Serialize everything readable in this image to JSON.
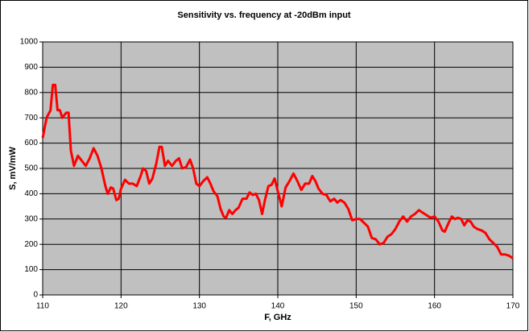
{
  "chart_data": {
    "type": "line",
    "title": "Sensitivity vs. frequency at -20dBm input",
    "xlabel": "F, GHz",
    "ylabel": "S, mV/mW",
    "x": [
      110,
      110.5,
      111,
      111.3,
      111.6,
      111.9,
      112.2,
      112.5,
      113,
      113.3,
      113.6,
      114,
      114.5,
      115,
      115.5,
      116,
      116.5,
      117,
      117.5,
      118,
      118.3,
      118.7,
      119,
      119.4,
      119.7,
      120,
      120.5,
      121,
      121.5,
      122,
      122.5,
      122.8,
      123.2,
      123.6,
      124,
      124.5,
      124.9,
      125.2,
      125.6,
      126,
      126.5,
      127,
      127.4,
      127.8,
      128.3,
      128.8,
      129.2,
      129.6,
      130,
      130.5,
      131,
      131.4,
      131.8,
      132.3,
      132.7,
      133.1,
      133.4,
      133.8,
      134.2,
      134.6,
      135,
      135.5,
      136,
      136.4,
      136.8,
      137.2,
      137.6,
      138,
      138.4,
      138.8,
      139.2,
      139.6,
      140,
      140.5,
      141,
      141.5,
      142,
      142.5,
      143,
      143.5,
      144,
      144.4,
      144.8,
      145.2,
      145.7,
      146.2,
      146.7,
      147.2,
      147.6,
      148,
      148.5,
      149,
      149.5,
      150,
      150.5,
      151,
      151.5,
      152,
      152.5,
      153,
      153.5,
      154,
      154.5,
      155,
      155.5,
      156,
      156.5,
      157,
      157.5,
      158,
      158.5,
      159,
      159.5,
      160,
      160.5,
      161,
      161.3,
      161.8,
      162.2,
      162.6,
      163,
      163.4,
      163.8,
      164.2,
      164.6,
      165,
      165.5,
      166,
      166.5,
      167,
      167.5,
      168,
      168.5,
      169,
      169.5,
      170
    ],
    "series": [
      {
        "color": "#ff0000",
        "values": [
          620,
          700,
          730,
          830,
          830,
          730,
          730,
          700,
          720,
          720,
          570,
          510,
          550,
          530,
          510,
          540,
          580,
          550,
          500,
          430,
          400,
          425,
          420,
          375,
          380,
          420,
          455,
          440,
          440,
          430,
          470,
          500,
          490,
          440,
          460,
          520,
          585,
          585,
          510,
          530,
          510,
          530,
          540,
          500,
          505,
          535,
          500,
          440,
          430,
          450,
          465,
          440,
          410,
          390,
          340,
          310,
          305,
          335,
          320,
          335,
          345,
          380,
          380,
          405,
          395,
          400,
          375,
          320,
          380,
          430,
          435,
          460,
          410,
          350,
          425,
          450,
          480,
          450,
          415,
          440,
          440,
          470,
          450,
          420,
          400,
          395,
          370,
          380,
          365,
          375,
          365,
          340,
          295,
          300,
          300,
          285,
          270,
          225,
          220,
          200,
          205,
          230,
          240,
          260,
          290,
          310,
          290,
          310,
          320,
          335,
          325,
          315,
          305,
          310,
          290,
          255,
          250,
          285,
          310,
          300,
          305,
          300,
          275,
          295,
          290,
          270,
          260,
          255,
          245,
          220,
          205,
          190,
          160,
          160,
          155,
          145
        ]
      }
    ],
    "xlim": [
      110,
      170
    ],
    "xticks": [
      110,
      120,
      130,
      140,
      150,
      160,
      170
    ],
    "ylim": [
      0,
      1000
    ],
    "yticks": [
      0,
      100,
      200,
      300,
      400,
      500,
      600,
      700,
      800,
      900,
      1000
    ],
    "grid": true,
    "plot_background": "#c0c0c0"
  }
}
